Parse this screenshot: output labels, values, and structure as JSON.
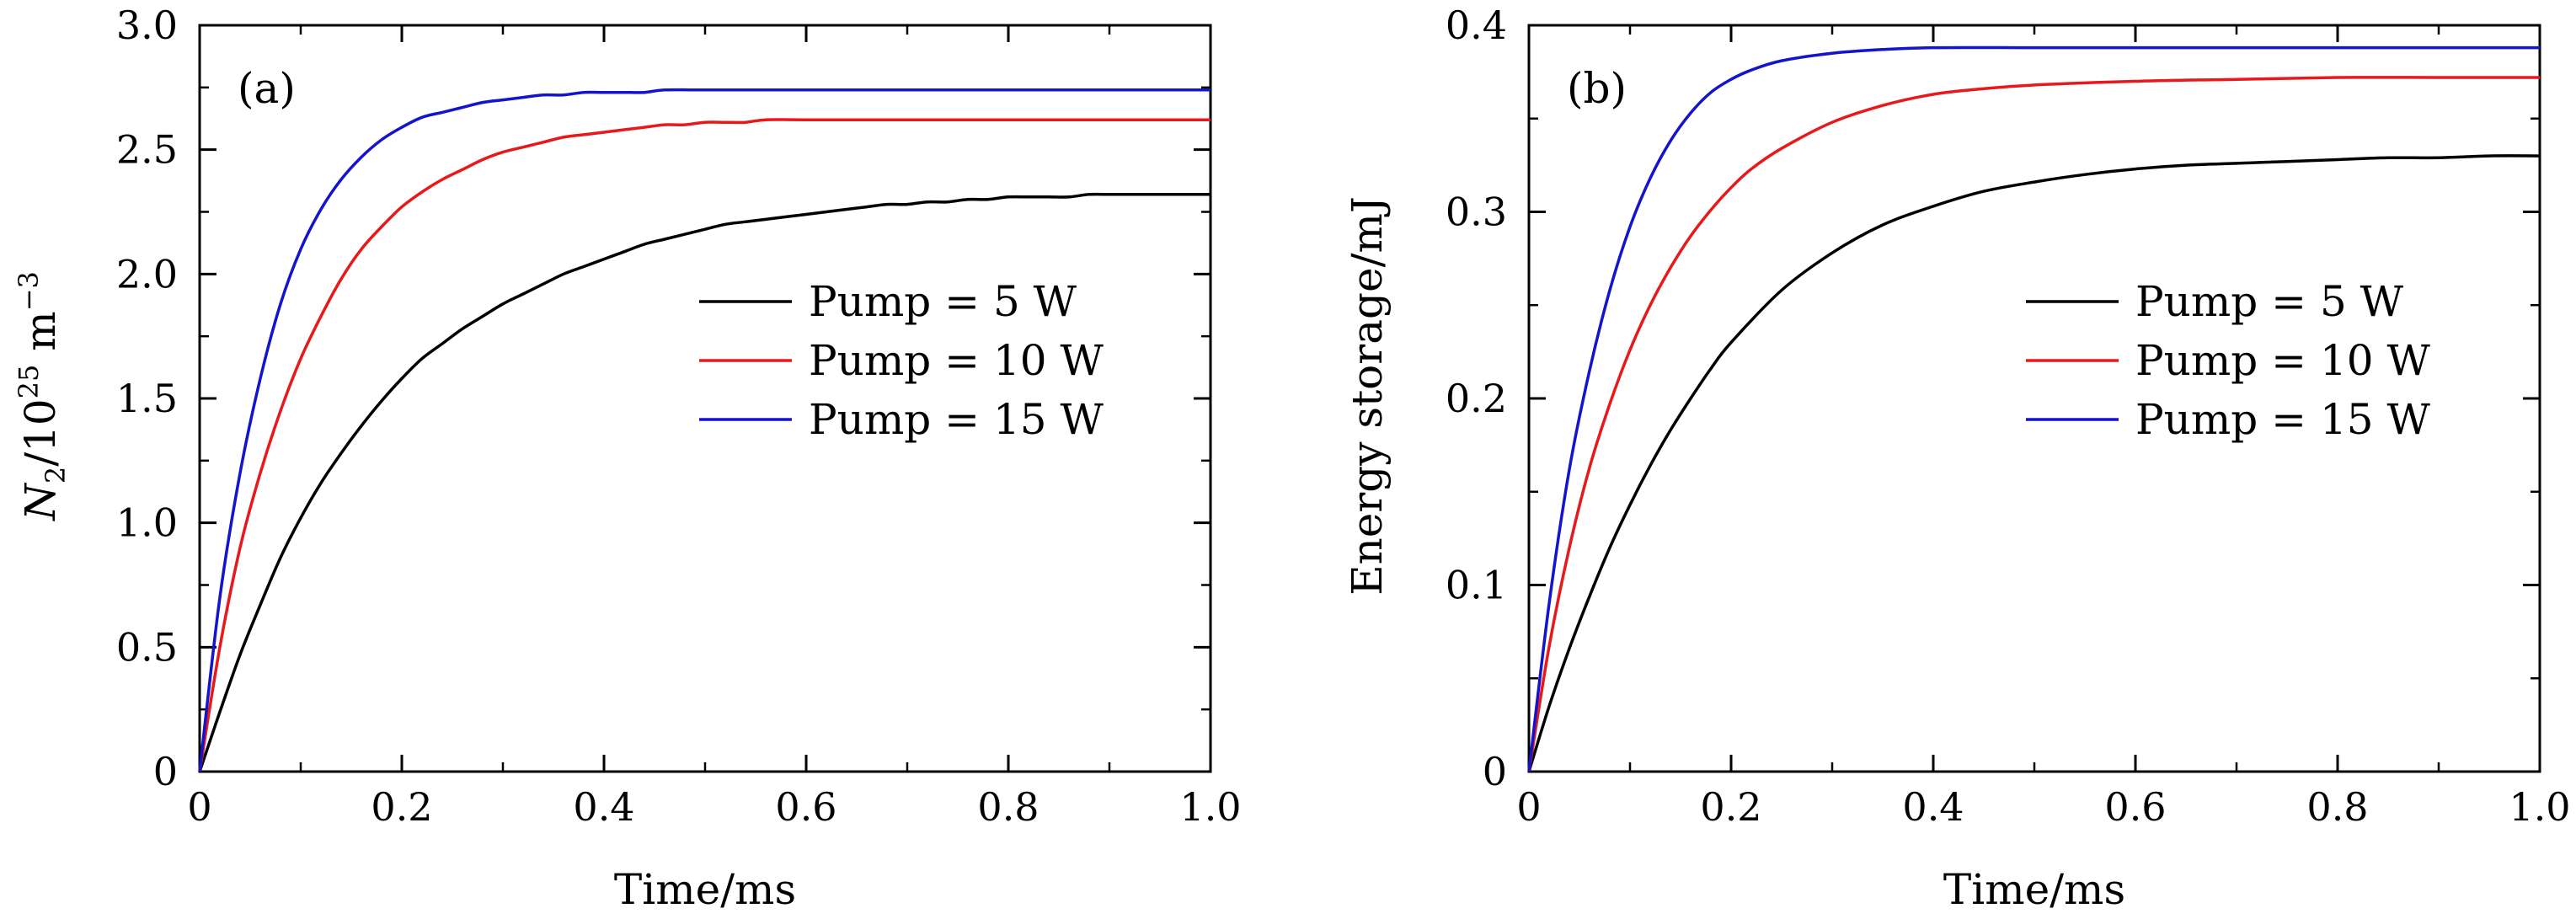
{
  "chart_data": [
    {
      "type": "line",
      "panel_label": "(a)",
      "xlabel": "Time/ms",
      "ylabel": {
        "symbol": "N",
        "subscript": "2",
        "unit_prefix": "/10",
        "exponent": "25",
        "unit": " m",
        "unit_exponent": "−3"
      },
      "xlim": [
        0,
        1.0
      ],
      "ylim": [
        0,
        3.0
      ],
      "xticks": [
        0,
        0.2,
        0.4,
        0.6,
        0.8,
        1.0
      ],
      "xtick_labels": [
        "0",
        "0.2",
        "0.4",
        "0.6",
        "0.8",
        "1.0"
      ],
      "yticks": [
        0,
        0.5,
        1.0,
        1.5,
        2.0,
        2.5,
        3.0
      ],
      "ytick_labels": [
        "0",
        "0.5",
        "1.0",
        "1.5",
        "2.0",
        "2.5",
        "3.0"
      ],
      "legend_position": "center-right",
      "series": [
        {
          "name": "Pump = 5 W",
          "color": "#000000",
          "x": [
            0,
            0.02,
            0.04,
            0.06,
            0.08,
            0.1,
            0.12,
            0.14,
            0.16,
            0.18,
            0.2,
            0.22,
            0.24,
            0.26,
            0.28,
            0.3,
            0.32,
            0.34,
            0.36,
            0.38,
            0.4,
            0.42,
            0.44,
            0.46,
            0.48,
            0.5,
            0.52,
            0.54,
            0.56,
            0.58,
            0.6,
            0.62,
            0.64,
            0.66,
            0.68,
            0.7,
            0.72,
            0.74,
            0.76,
            0.78,
            0.8,
            0.82,
            0.84,
            0.86,
            0.88,
            0.9,
            0.92,
            0.94,
            0.96,
            0.98,
            1.0
          ],
          "y": [
            0,
            0.24,
            0.47,
            0.67,
            0.86,
            1.02,
            1.16,
            1.28,
            1.39,
            1.49,
            1.58,
            1.66,
            1.72,
            1.78,
            1.83,
            1.88,
            1.92,
            1.96,
            2.0,
            2.03,
            2.06,
            2.09,
            2.12,
            2.14,
            2.16,
            2.18,
            2.2,
            2.21,
            2.22,
            2.23,
            2.24,
            2.25,
            2.26,
            2.27,
            2.28,
            2.28,
            2.29,
            2.29,
            2.3,
            2.3,
            2.31,
            2.31,
            2.31,
            2.31,
            2.32,
            2.32,
            2.32,
            2.32,
            2.32,
            2.32,
            2.32
          ]
        },
        {
          "name": "Pump = 10 W",
          "color": "#e8191b",
          "x": [
            0,
            0.02,
            0.04,
            0.06,
            0.08,
            0.1,
            0.12,
            0.14,
            0.16,
            0.18,
            0.2,
            0.22,
            0.24,
            0.26,
            0.28,
            0.3,
            0.32,
            0.34,
            0.36,
            0.38,
            0.4,
            0.42,
            0.44,
            0.46,
            0.48,
            0.5,
            0.52,
            0.54,
            0.56,
            0.6,
            0.7,
            0.8,
            0.9,
            1.0
          ],
          "y": [
            0,
            0.5,
            0.9,
            1.2,
            1.45,
            1.66,
            1.83,
            1.98,
            2.1,
            2.19,
            2.27,
            2.33,
            2.38,
            2.42,
            2.46,
            2.49,
            2.51,
            2.53,
            2.55,
            2.56,
            2.57,
            2.58,
            2.59,
            2.6,
            2.6,
            2.61,
            2.61,
            2.61,
            2.62,
            2.62,
            2.62,
            2.62,
            2.62,
            2.62
          ]
        },
        {
          "name": "Pump = 15 W",
          "color": "#1414cc",
          "x": [
            0,
            0.02,
            0.04,
            0.06,
            0.08,
            0.1,
            0.12,
            0.14,
            0.16,
            0.18,
            0.2,
            0.22,
            0.24,
            0.26,
            0.28,
            0.3,
            0.32,
            0.34,
            0.36,
            0.38,
            0.4,
            0.42,
            0.44,
            0.46,
            0.5,
            0.6,
            0.8,
            1.0
          ],
          "y": [
            0,
            0.7,
            1.2,
            1.58,
            1.88,
            2.1,
            2.26,
            2.38,
            2.47,
            2.54,
            2.59,
            2.63,
            2.65,
            2.67,
            2.69,
            2.7,
            2.71,
            2.72,
            2.72,
            2.73,
            2.73,
            2.73,
            2.73,
            2.74,
            2.74,
            2.74,
            2.74,
            2.74
          ]
        }
      ]
    },
    {
      "type": "line",
      "panel_label": "(b)",
      "xlabel": "Time/ms",
      "ylabel": "Energy storage/mJ",
      "xlim": [
        0,
        1.0
      ],
      "ylim": [
        0,
        0.4
      ],
      "xticks": [
        0,
        0.2,
        0.4,
        0.6,
        0.8,
        1.0
      ],
      "xtick_labels": [
        "0",
        "0.2",
        "0.4",
        "0.6",
        "0.8",
        "1.0"
      ],
      "yticks": [
        0,
        0.1,
        0.2,
        0.3,
        0.4
      ],
      "ytick_labels": [
        "0",
        "0.1",
        "0.2",
        "0.3",
        "0.4"
      ],
      "legend_position": "center-right",
      "series": [
        {
          "name": "Pump = 5 W",
          "color": "#000000",
          "x": [
            0,
            0.02,
            0.04,
            0.06,
            0.08,
            0.1,
            0.12,
            0.14,
            0.16,
            0.18,
            0.2,
            0.25,
            0.3,
            0.35,
            0.4,
            0.45,
            0.5,
            0.55,
            0.6,
            0.65,
            0.7,
            0.75,
            0.8,
            0.85,
            0.9,
            0.95,
            1.0
          ],
          "y": [
            0,
            0.035,
            0.066,
            0.094,
            0.12,
            0.143,
            0.164,
            0.183,
            0.2,
            0.216,
            0.23,
            0.258,
            0.278,
            0.293,
            0.303,
            0.311,
            0.316,
            0.32,
            0.323,
            0.325,
            0.326,
            0.327,
            0.328,
            0.329,
            0.329,
            0.33,
            0.33
          ]
        },
        {
          "name": "Pump = 10 W",
          "color": "#e8191b",
          "x": [
            0,
            0.02,
            0.04,
            0.06,
            0.08,
            0.1,
            0.12,
            0.14,
            0.16,
            0.18,
            0.2,
            0.22,
            0.25,
            0.3,
            0.35,
            0.4,
            0.45,
            0.5,
            0.6,
            0.7,
            0.8,
            0.9,
            1.0
          ],
          "y": [
            0,
            0.067,
            0.12,
            0.163,
            0.197,
            0.226,
            0.25,
            0.27,
            0.287,
            0.301,
            0.313,
            0.323,
            0.334,
            0.348,
            0.357,
            0.363,
            0.366,
            0.368,
            0.37,
            0.371,
            0.372,
            0.372,
            0.372
          ]
        },
        {
          "name": "Pump = 15 W",
          "color": "#1414cc",
          "x": [
            0,
            0.02,
            0.04,
            0.06,
            0.08,
            0.1,
            0.12,
            0.14,
            0.16,
            0.18,
            0.2,
            0.22,
            0.25,
            0.3,
            0.35,
            0.4,
            0.5,
            0.6,
            0.8,
            1.0
          ],
          "y": [
            0,
            0.09,
            0.162,
            0.215,
            0.258,
            0.292,
            0.318,
            0.338,
            0.353,
            0.364,
            0.371,
            0.376,
            0.381,
            0.385,
            0.387,
            0.388,
            0.388,
            0.388,
            0.388,
            0.388
          ]
        }
      ]
    }
  ]
}
